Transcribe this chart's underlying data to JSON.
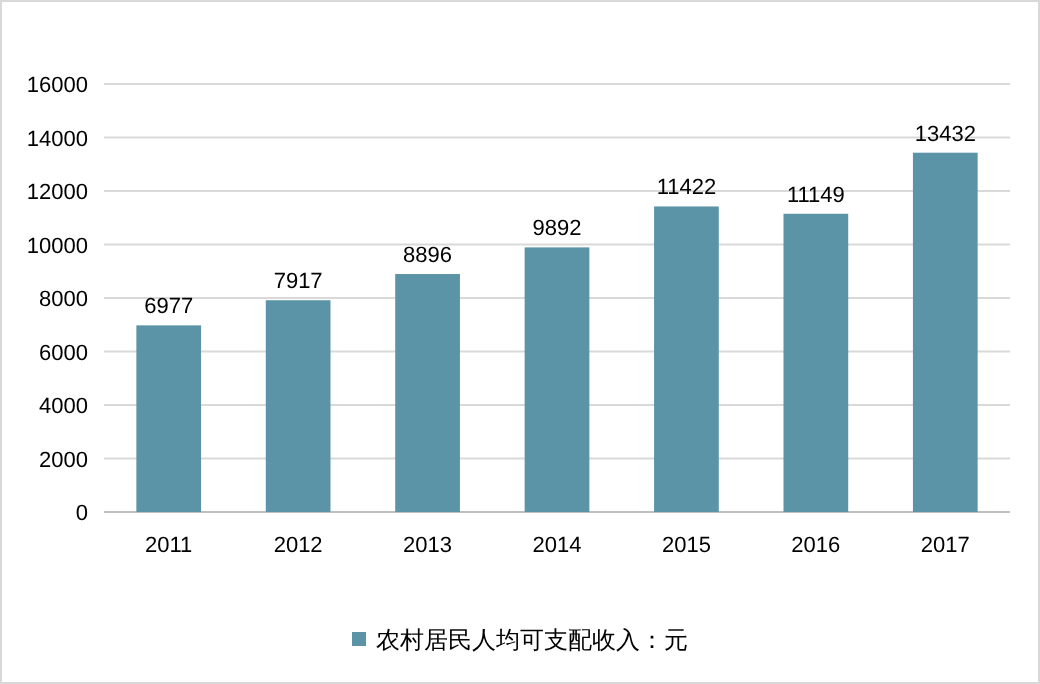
{
  "chart_data": {
    "type": "bar",
    "categories": [
      "2011",
      "2012",
      "2013",
      "2014",
      "2015",
      "2016",
      "2017"
    ],
    "series": [
      {
        "name": "农村居民人均可支配收入：元",
        "color": "#5b93a7",
        "values": [
          6977,
          7917,
          8896,
          9892,
          11422,
          11149,
          13432
        ]
      }
    ],
    "ylim": [
      0,
      16000
    ],
    "yticks": [
      0,
      2000,
      4000,
      6000,
      8000,
      10000,
      12000,
      14000,
      16000
    ],
    "grid": "y",
    "legend": "bottom",
    "data_labels": true
  }
}
